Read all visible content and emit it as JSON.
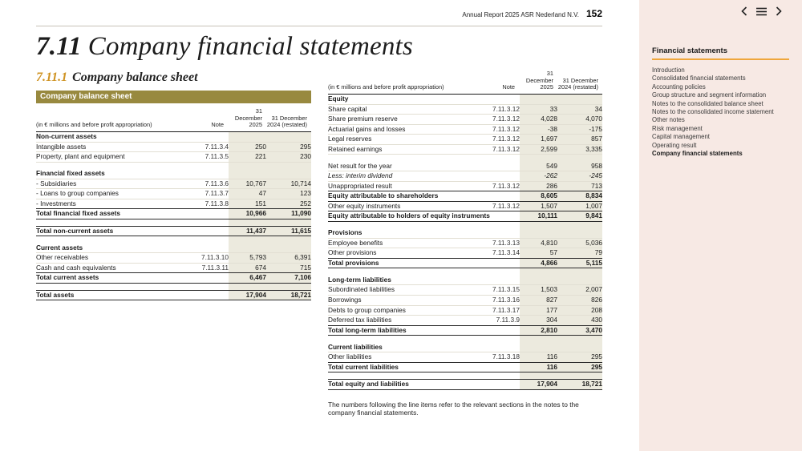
{
  "header": {
    "report_title": "Annual Report 2025 ASR Nederland N.V.",
    "page_number": "152"
  },
  "title": {
    "section_number": "7.11",
    "section_title": "Company financial statements",
    "subsection_number": "7.11.1",
    "subsection_title": "Company balance sheet"
  },
  "table_bar": "Company balance sheet",
  "col_headers": {
    "desc": "(in € millions and before profit appropriation)",
    "note": "Note",
    "y2025_l1": "31 December",
    "y2025_l2": "2025",
    "y2024_l1": "31 December",
    "y2024_l2": "2024 (restated)"
  },
  "left_table": [
    {
      "t": "section",
      "l": "Non-current assets"
    },
    {
      "t": "item",
      "l": "Intangible assets",
      "n": "7.11.3.4",
      "a": "250",
      "b": "295"
    },
    {
      "t": "item",
      "l": "Property, plant and equipment",
      "n": "7.11.3.5",
      "a": "221",
      "b": "230"
    },
    {
      "t": "spacer"
    },
    {
      "t": "section",
      "l": "Financial fixed assets"
    },
    {
      "t": "item",
      "l": "- Subsidiaries",
      "n": "7.11.3.6",
      "a": "10,767",
      "b": "10,714"
    },
    {
      "t": "item",
      "l": "- Loans to group companies",
      "n": "7.11.3.7",
      "a": "47",
      "b": "123"
    },
    {
      "t": "item",
      "l": "- Investments",
      "n": "7.11.3.8",
      "a": "151",
      "b": "252"
    },
    {
      "t": "total",
      "l": "Total financial fixed assets",
      "a": "10,966",
      "b": "11,090"
    },
    {
      "t": "spacer"
    },
    {
      "t": "total",
      "l": "Total non-current assets",
      "a": "11,437",
      "b": "11,615"
    },
    {
      "t": "spacer"
    },
    {
      "t": "section",
      "l": "Current assets"
    },
    {
      "t": "item",
      "l": "Other receivables",
      "n": "7.11.3.10",
      "a": "5,793",
      "b": "6,391"
    },
    {
      "t": "item",
      "l": "Cash and cash equivalents",
      "n": "7.11.3.11",
      "a": "674",
      "b": "715"
    },
    {
      "t": "total",
      "l": "Total current assets",
      "a": "6,467",
      "b": "7,106"
    },
    {
      "t": "spacer"
    },
    {
      "t": "grand",
      "l": "Total assets",
      "a": "17,904",
      "b": "18,721"
    }
  ],
  "right_table": [
    {
      "t": "section",
      "l": "Equity"
    },
    {
      "t": "item",
      "l": "Share capital",
      "n": "7.11.3.12",
      "a": "33",
      "b": "34"
    },
    {
      "t": "item",
      "l": "Share premium reserve",
      "n": "7.11.3.12",
      "a": "4,028",
      "b": "4,070"
    },
    {
      "t": "item",
      "l": "Actuarial gains and losses",
      "n": "7.11.3.12",
      "a": "-38",
      "b": "-175"
    },
    {
      "t": "item",
      "l": "Legal reserves",
      "n": "7.11.3.12",
      "a": "1,697",
      "b": "857"
    },
    {
      "t": "item",
      "l": "Retained earnings",
      "n": "7.11.3.12",
      "a": "2,599",
      "b": "3,335"
    },
    {
      "t": "spacer"
    },
    {
      "t": "item",
      "l": "Net result for the year",
      "a": "549",
      "b": "958"
    },
    {
      "t": "italic",
      "l": "Less: interim dividend",
      "a": "-262",
      "b": "-245"
    },
    {
      "t": "item",
      "l": "Unappropriated result",
      "n": "7.11.3.12",
      "a": "286",
      "b": "713"
    },
    {
      "t": "total",
      "l": "Equity attributable to shareholders",
      "a": "8,605",
      "b": "8,834"
    },
    {
      "t": "item",
      "l": "Other equity instruments",
      "n": "7.11.3.12",
      "a": "1,507",
      "b": "1,007"
    },
    {
      "t": "total",
      "l": "Equity attributable to holders of equity instruments",
      "a": "10,111",
      "b": "9,841"
    },
    {
      "t": "spacer"
    },
    {
      "t": "section",
      "l": "Provisions"
    },
    {
      "t": "item",
      "l": "Employee benefits",
      "n": "7.11.3.13",
      "a": "4,810",
      "b": "5,036"
    },
    {
      "t": "item",
      "l": "Other provisions",
      "n": "7.11.3.14",
      "a": "57",
      "b": "79"
    },
    {
      "t": "total",
      "l": "Total provisions",
      "a": "4,866",
      "b": "5,115"
    },
    {
      "t": "spacer"
    },
    {
      "t": "section",
      "l": "Long-term liabilities"
    },
    {
      "t": "item",
      "l": "Subordinated liabilities",
      "n": "7.11.3.15",
      "a": "1,503",
      "b": "2,007"
    },
    {
      "t": "item",
      "l": "Borrowings",
      "n": "7.11.3.16",
      "a": "827",
      "b": "826"
    },
    {
      "t": "item",
      "l": "Debts to group companies",
      "n": "7.11.3.17",
      "a": "177",
      "b": "208"
    },
    {
      "t": "item",
      "l": "Deferred tax liabilities",
      "n": "7.11.3.9",
      "a": "304",
      "b": "430"
    },
    {
      "t": "total",
      "l": "Total long-term liabilities",
      "a": "2,810",
      "b": "3,470"
    },
    {
      "t": "spacer"
    },
    {
      "t": "section",
      "l": "Current liabilities"
    },
    {
      "t": "item",
      "l": "Other liabilities",
      "n": "7.11.3.18",
      "a": "116",
      "b": "295"
    },
    {
      "t": "total",
      "l": "Total current liabilities",
      "a": "116",
      "b": "295"
    },
    {
      "t": "spacer"
    },
    {
      "t": "grand",
      "l": "Total equity and liabilities",
      "a": "17,904",
      "b": "18,721"
    }
  ],
  "footnote": "The numbers following the line items refer to the relevant sections in the notes to the company financial statements.",
  "sidebar": {
    "title": "Financial statements",
    "items": [
      {
        "label": "Introduction",
        "active": false
      },
      {
        "label": "Consolidated financial statements",
        "active": false
      },
      {
        "label": "Accounting policies",
        "active": false
      },
      {
        "label": "Group structure and segment information",
        "active": false
      },
      {
        "label": "Notes to the consolidated balance sheet",
        "active": false
      },
      {
        "label": "Notes to the consolidated income statement",
        "active": false
      },
      {
        "label": "Other notes",
        "active": false
      },
      {
        "label": "Risk management",
        "active": false
      },
      {
        "label": "Capital management",
        "active": false
      },
      {
        "label": "Operating result",
        "active": false
      },
      {
        "label": "Company financial statements",
        "active": true
      }
    ]
  },
  "colors": {
    "table_bar_bg": "#98893f",
    "value_band_bg": "#eceade",
    "accent_orange": "#efa63c",
    "subsection_number": "#cf9323",
    "sidebar_bg": "#f7e9e4"
  }
}
